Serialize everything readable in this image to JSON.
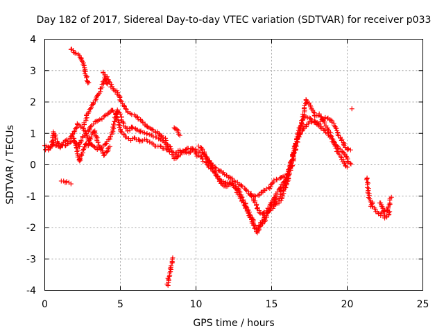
{
  "chart_data": {
    "type": "scatter",
    "title": "Day 182 of 2017, Sidereal Day-to-day VTEC variation (SDTVAR) for receiver p033",
    "xlabel": "GPS time / hours",
    "ylabel": "SDTVAR / TECUs",
    "xlim": [
      0,
      25
    ],
    "ylim": [
      -4,
      4
    ],
    "xticks": [
      0,
      5,
      10,
      15,
      20,
      25
    ],
    "xtick_labels": [
      "0",
      "5",
      "10",
      "15",
      "20",
      "25"
    ],
    "yticks": [
      -4,
      -3,
      -2,
      -1,
      0,
      1,
      2,
      3,
      4
    ],
    "ytick_labels": [
      "-4",
      "-3",
      "-2",
      "-1",
      "0",
      "1",
      "2",
      "3",
      "4"
    ],
    "grid": true,
    "marker": "+",
    "color": "#ff0000",
    "series": [
      {
        "name": "SDTVAR",
        "trace_note": "curve polylines in (hour, TECU); points sampled along each",
        "traces": [
          [
            [
              0.0,
              0.5
            ],
            [
              0.2,
              0.45
            ],
            [
              0.4,
              0.55
            ],
            [
              0.6,
              0.7
            ],
            [
              0.8,
              0.6
            ],
            [
              1.0,
              0.55
            ],
            [
              1.3,
              0.6
            ],
            [
              1.6,
              0.7
            ],
            [
              2.0,
              0.75
            ],
            [
              2.3,
              0.6
            ],
            [
              2.5,
              0.9
            ],
            [
              2.8,
              1.0
            ],
            [
              3.0,
              1.2
            ],
            [
              3.3,
              1.35
            ],
            [
              3.6,
              1.4
            ],
            [
              3.9,
              1.5
            ],
            [
              4.2,
              1.65
            ],
            [
              4.5,
              1.75
            ],
            [
              4.8,
              1.5
            ],
            [
              5.0,
              1.1
            ],
            [
              5.3,
              0.9
            ],
            [
              5.7,
              0.8
            ],
            [
              6.0,
              0.85
            ],
            [
              6.3,
              0.75
            ],
            [
              6.6,
              0.8
            ],
            [
              7.0,
              0.7
            ],
            [
              7.4,
              0.6
            ],
            [
              7.8,
              0.55
            ],
            [
              8.0,
              0.5
            ]
          ],
          [
            [
              0.0,
              0.6
            ],
            [
              0.3,
              0.55
            ],
            [
              0.5,
              0.65
            ],
            [
              0.6,
              1.05
            ],
            [
              0.8,
              0.75
            ],
            [
              1.0,
              0.6
            ],
            [
              1.4,
              0.75
            ],
            [
              1.8,
              0.9
            ],
            [
              2.2,
              1.3
            ],
            [
              2.5,
              1.2
            ],
            [
              2.8,
              0.9
            ],
            [
              3.0,
              0.7
            ],
            [
              3.2,
              0.6
            ],
            [
              3.5,
              0.5
            ],
            [
              3.8,
              0.55
            ],
            [
              4.1,
              0.7
            ],
            [
              4.4,
              0.9
            ],
            [
              4.6,
              1.4
            ],
            [
              4.8,
              1.75
            ],
            [
              5.0,
              1.6
            ],
            [
              5.2,
              1.3
            ],
            [
              5.5,
              1.1
            ],
            [
              5.8,
              1.2
            ],
            [
              6.1,
              1.1
            ],
            [
              6.5,
              1.05
            ],
            [
              6.9,
              0.95
            ],
            [
              7.3,
              0.9
            ],
            [
              7.7,
              0.8
            ],
            [
              8.0,
              0.7
            ]
          ],
          [
            [
              1.8,
              0.9
            ],
            [
              2.1,
              0.6
            ],
            [
              2.3,
              0.1
            ],
            [
              2.5,
              0.4
            ],
            [
              2.7,
              0.7
            ],
            [
              2.9,
              0.6
            ],
            [
              3.1,
              0.95
            ],
            [
              3.3,
              1.1
            ],
            [
              3.5,
              0.75
            ],
            [
              3.7,
              0.5
            ],
            [
              3.9,
              0.3
            ],
            [
              4.1,
              0.4
            ],
            [
              4.3,
              0.6
            ]
          ],
          [
            [
              2.6,
              1.3
            ],
            [
              2.9,
              1.7
            ],
            [
              3.2,
              1.95
            ],
            [
              3.5,
              2.2
            ],
            [
              3.8,
              2.55
            ],
            [
              4.1,
              2.8
            ],
            [
              4.4,
              2.5
            ],
            [
              4.8,
              2.3
            ],
            [
              5.1,
              2.0
            ],
            [
              5.4,
              1.75
            ],
            [
              5.7,
              1.6
            ],
            [
              6.0,
              1.55
            ],
            [
              6.3,
              1.45
            ],
            [
              6.6,
              1.3
            ],
            [
              6.9,
              1.2
            ],
            [
              7.2,
              1.1
            ],
            [
              7.5,
              1.0
            ],
            [
              7.8,
              0.9
            ],
            [
              8.0,
              0.8
            ]
          ],
          [
            [
              1.7,
              3.7
            ],
            [
              1.9,
              3.6
            ],
            [
              2.1,
              3.55
            ],
            [
              2.3,
              3.45
            ],
            [
              2.5,
              3.35
            ],
            [
              2.6,
              3.1
            ],
            [
              2.7,
              2.9
            ],
            [
              2.8,
              2.7
            ],
            [
              2.9,
              2.6
            ]
          ],
          [
            [
              3.9,
              2.95
            ],
            [
              4.0,
              2.7
            ],
            [
              4.1,
              2.55
            ]
          ],
          [
            [
              1.1,
              -0.5
            ],
            [
              1.3,
              -0.55
            ],
            [
              1.5,
              -0.55
            ],
            [
              1.7,
              -0.6
            ]
          ],
          [
            [
              8.0,
              0.55
            ],
            [
              8.3,
              0.4
            ],
            [
              8.6,
              0.35
            ],
            [
              8.9,
              0.45
            ],
            [
              9.2,
              0.4
            ],
            [
              9.5,
              0.35
            ],
            [
              9.8,
              0.5
            ],
            [
              10.1,
              0.45
            ],
            [
              10.4,
              0.4
            ],
            [
              10.7,
              0.2
            ],
            [
              11.0,
              0.0
            ],
            [
              11.3,
              -0.1
            ],
            [
              11.6,
              -0.2
            ],
            [
              11.9,
              -0.3
            ],
            [
              12.2,
              -0.4
            ],
            [
              12.5,
              -0.5
            ],
            [
              12.8,
              -0.6
            ],
            [
              13.1,
              -0.7
            ],
            [
              13.4,
              -0.85
            ],
            [
              13.7,
              -1.0
            ],
            [
              14.0,
              -1.0
            ],
            [
              14.3,
              -0.9
            ],
            [
              14.6,
              -0.8
            ],
            [
              14.9,
              -0.7
            ],
            [
              15.2,
              -0.5
            ],
            [
              15.5,
              -0.45
            ],
            [
              15.8,
              -0.4
            ],
            [
              16.0,
              -0.3
            ],
            [
              16.2,
              -0.1
            ],
            [
              16.4,
              0.3
            ],
            [
              16.6,
              0.7
            ],
            [
              16.8,
              1.1
            ],
            [
              17.0,
              1.4
            ],
            [
              17.2,
              1.55
            ],
            [
              17.5,
              1.5
            ],
            [
              17.8,
              1.35
            ],
            [
              18.1,
              1.25
            ],
            [
              18.4,
              1.15
            ],
            [
              18.7,
              1.0
            ],
            [
              19.0,
              0.8
            ],
            [
              19.3,
              0.6
            ],
            [
              19.6,
              0.45
            ],
            [
              19.9,
              0.3
            ],
            [
              20.2,
              0.0
            ]
          ],
          [
            [
              8.0,
              0.65
            ],
            [
              8.3,
              0.55
            ],
            [
              8.6,
              0.2
            ],
            [
              8.9,
              0.3
            ],
            [
              9.2,
              0.45
            ],
            [
              9.5,
              0.55
            ],
            [
              9.8,
              0.5
            ],
            [
              10.1,
              0.3
            ],
            [
              10.4,
              0.2
            ],
            [
              10.7,
              0.0
            ],
            [
              11.0,
              -0.15
            ],
            [
              11.3,
              -0.3
            ],
            [
              11.6,
              -0.5
            ],
            [
              11.9,
              -0.55
            ],
            [
              12.2,
              -0.6
            ],
            [
              12.5,
              -0.65
            ],
            [
              12.8,
              -0.8
            ],
            [
              13.1,
              -1.1
            ],
            [
              13.4,
              -1.4
            ],
            [
              13.7,
              -1.7
            ],
            [
              14.0,
              -2.05
            ],
            [
              14.3,
              -1.85
            ],
            [
              14.6,
              -1.6
            ],
            [
              14.9,
              -1.45
            ],
            [
              15.2,
              -1.3
            ],
            [
              15.5,
              -1.2
            ],
            [
              15.8,
              -0.9
            ],
            [
              16.0,
              -0.6
            ],
            [
              16.2,
              -0.3
            ],
            [
              16.4,
              0.1
            ],
            [
              16.6,
              0.6
            ],
            [
              16.8,
              0.9
            ],
            [
              17.0,
              1.05
            ],
            [
              17.2,
              1.2
            ],
            [
              17.5,
              1.35
            ],
            [
              17.8,
              1.4
            ],
            [
              18.1,
              1.3
            ],
            [
              18.4,
              1.45
            ],
            [
              18.7,
              1.5
            ],
            [
              19.0,
              1.4
            ],
            [
              19.3,
              1.1
            ],
            [
              19.6,
              0.8
            ],
            [
              19.9,
              0.55
            ],
            [
              20.2,
              0.45
            ]
          ],
          [
            [
              10.2,
              0.6
            ],
            [
              10.5,
              0.4
            ],
            [
              10.8,
              0.2
            ],
            [
              11.1,
              -0.1
            ],
            [
              11.4,
              -0.35
            ],
            [
              11.7,
              -0.65
            ],
            [
              12.0,
              -0.7
            ],
            [
              12.3,
              -0.55
            ],
            [
              12.6,
              -0.75
            ],
            [
              12.9,
              -1.0
            ],
            [
              13.2,
              -1.3
            ],
            [
              13.5,
              -1.6
            ],
            [
              13.8,
              -1.9
            ],
            [
              14.0,
              -2.15
            ],
            [
              14.3,
              -1.95
            ],
            [
              14.6,
              -1.7
            ],
            [
              14.9,
              -1.35
            ],
            [
              15.2,
              -1.15
            ],
            [
              15.5,
              -1.05
            ],
            [
              15.8,
              -0.75
            ],
            [
              16.1,
              -0.25
            ],
            [
              16.4,
              0.25
            ],
            [
              16.7,
              0.85
            ],
            [
              17.0,
              1.3
            ],
            [
              17.3,
              2.1
            ],
            [
              17.6,
              1.85
            ],
            [
              17.9,
              1.55
            ],
            [
              18.2,
              1.6
            ],
            [
              18.5,
              1.3
            ],
            [
              18.8,
              1.05
            ],
            [
              19.1,
              0.7
            ],
            [
              19.4,
              0.4
            ],
            [
              19.7,
              0.15
            ],
            [
              20.0,
              -0.1
            ]
          ],
          [
            [
              13.6,
              -0.9
            ],
            [
              13.8,
              -1.1
            ],
            [
              14.0,
              -1.3
            ],
            [
              14.2,
              -1.5
            ],
            [
              14.4,
              -1.6
            ],
            [
              14.7,
              -1.45
            ],
            [
              15.0,
              -1.2
            ],
            [
              15.3,
              -0.95
            ],
            [
              15.6,
              -0.7
            ],
            [
              15.9,
              -0.5
            ],
            [
              16.1,
              -0.35
            ]
          ],
          [
            [
              8.1,
              -3.85
            ],
            [
              8.2,
              -3.6
            ],
            [
              8.3,
              -3.4
            ],
            [
              8.4,
              -3.2
            ],
            [
              8.5,
              -2.95
            ]
          ],
          [
            [
              8.6,
              1.2
            ],
            [
              8.75,
              1.1
            ],
            [
              8.9,
              0.95
            ]
          ],
          [
            [
              21.3,
              -0.4
            ],
            [
              21.4,
              -0.8
            ],
            [
              21.5,
              -1.15
            ],
            [
              21.6,
              -1.35
            ],
            [
              21.7,
              -1.2
            ]
          ],
          [
            [
              21.8,
              -1.4
            ],
            [
              22.0,
              -1.5
            ],
            [
              22.2,
              -1.6
            ],
            [
              22.4,
              -1.45
            ],
            [
              22.6,
              -1.5
            ],
            [
              22.8,
              -1.3
            ],
            [
              22.9,
              -1.05
            ]
          ],
          [
            [
              22.1,
              -1.2
            ],
            [
              22.3,
              -1.3
            ],
            [
              22.5,
              -1.7
            ],
            [
              22.7,
              -1.6
            ],
            [
              22.8,
              -1.5
            ]
          ],
          [
            [
              20.3,
              1.8
            ]
          ]
        ]
      }
    ]
  }
}
